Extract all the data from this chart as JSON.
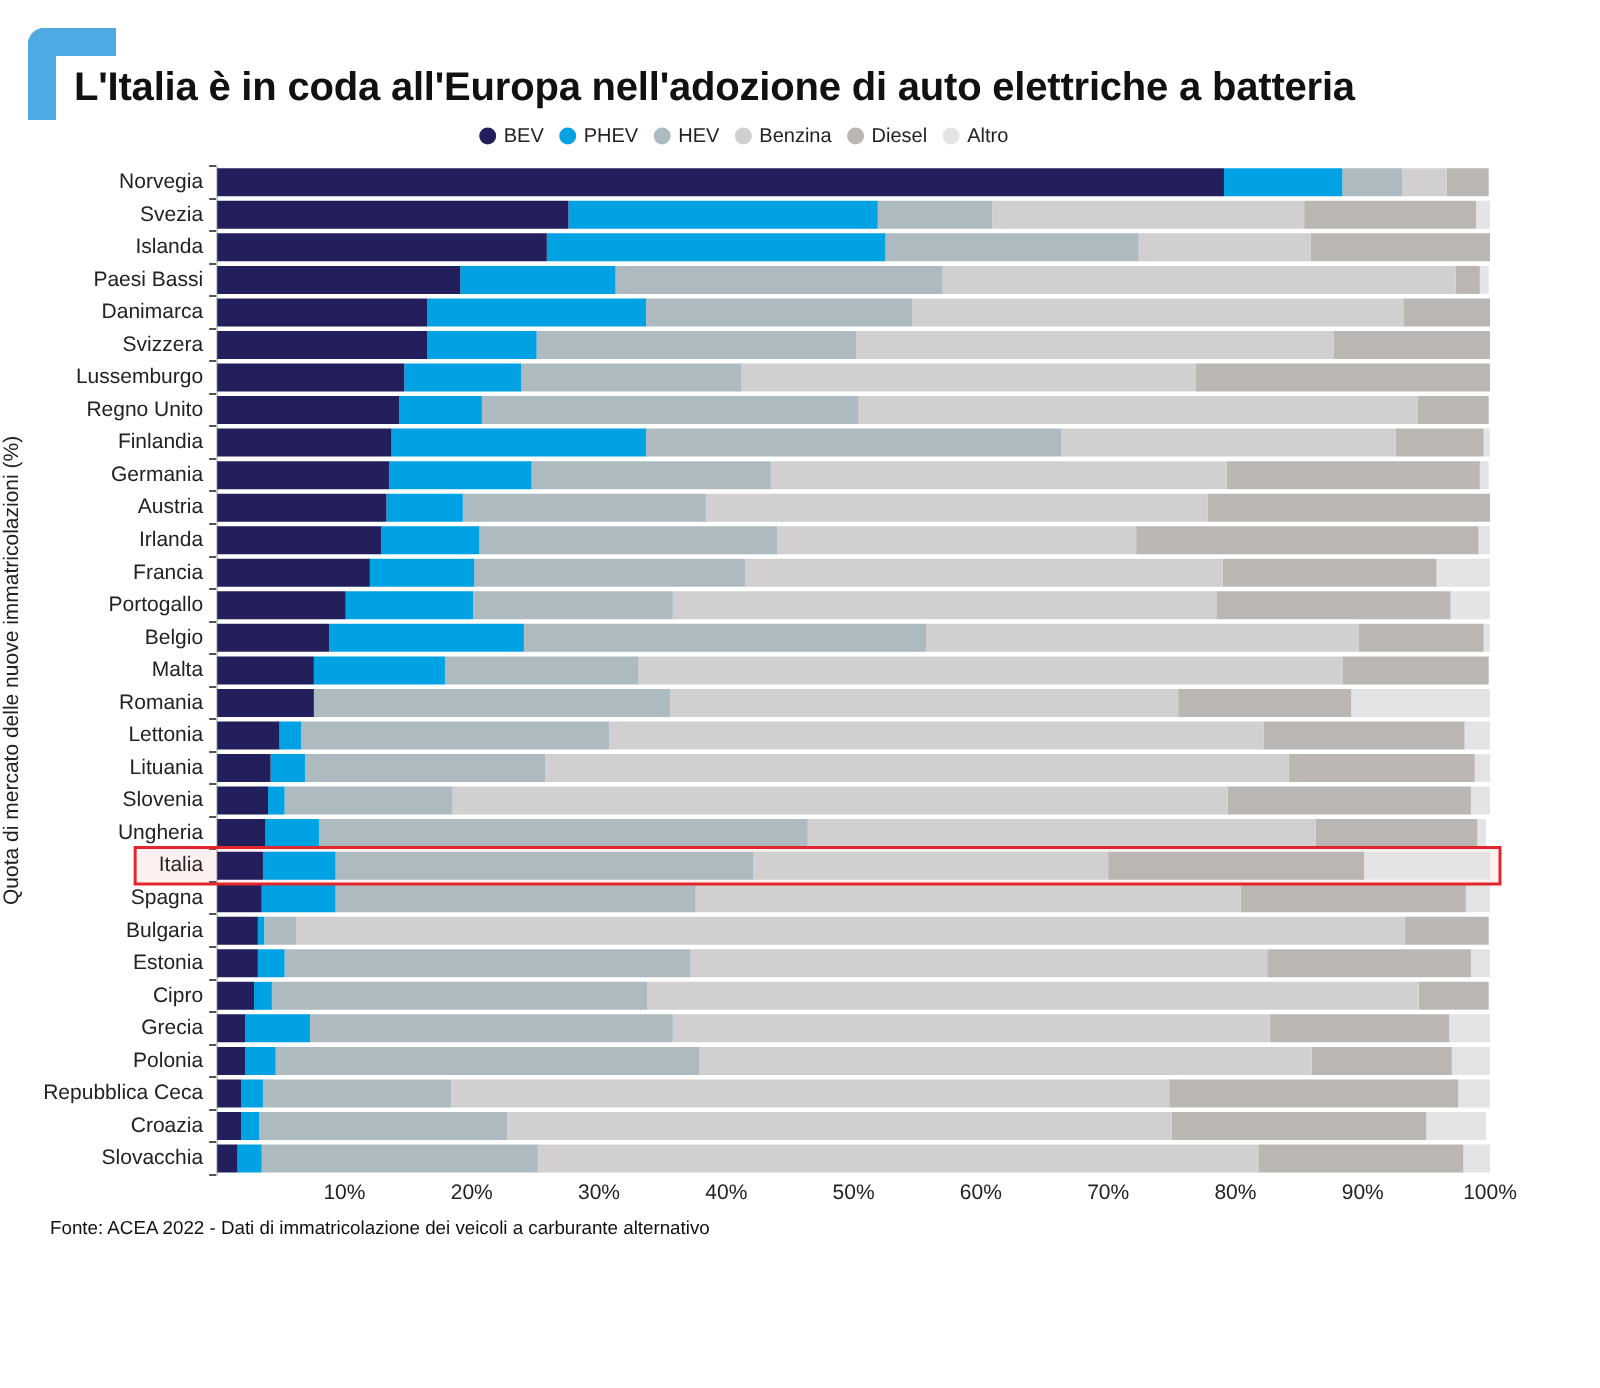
{
  "chart_data": {
    "type": "bar",
    "orientation": "horizontal",
    "stacked": true,
    "title": "L'Italia è in coda all'Europa nell'adozione di auto elettriche a batteria",
    "ylabel": "Quota di mercato delle nuove immatricolazioni (%)",
    "annotations": [
      "Fonte: ACEA 2022 - Dati di immatricolazione dei veicoli a carburante alternativo"
    ],
    "categories": [
      "Norvegia",
      "Svezia",
      "Islanda",
      "Paesi Bassi",
      "Danimarca",
      "Svizzera",
      "Lussemburgo",
      "Regno Unito",
      "Finlandia",
      "Germania",
      "Austria",
      "Irlanda",
      "Francia",
      "Portogallo",
      "Belgio",
      "Malta",
      "Romania",
      "Lettonia",
      "Lituania",
      "Slovenia",
      "Ungheria",
      "Italia",
      "Spagna",
      "Bulgaria",
      "Estonia",
      "Cipro",
      "Grecia",
      "Polonia",
      "Repubblica Ceca",
      "Croazia",
      "Slovacchia"
    ],
    "series": [
      {
        "name": "BEV",
        "color": "#231f5c",
        "values": [
          79.1,
          27.6,
          25.9,
          19.1,
          16.5,
          16.5,
          14.7,
          14.3,
          13.7,
          13.5,
          13.3,
          12.9,
          12.0,
          10.1,
          8.8,
          7.6,
          7.6,
          4.9,
          4.2,
          4.0,
          3.8,
          3.6,
          3.5,
          3.2,
          3.2,
          2.9,
          2.2,
          2.2,
          1.9,
          1.9,
          1.6
        ]
      },
      {
        "name": "PHEV",
        "color": "#00a2e3",
        "values": [
          9.3,
          24.3,
          26.6,
          12.2,
          17.2,
          8.6,
          9.2,
          6.5,
          20.0,
          11.2,
          6.0,
          7.7,
          8.2,
          10.0,
          15.3,
          10.3,
          0,
          1.7,
          2.7,
          1.3,
          4.2,
          5.7,
          5.8,
          0.5,
          2.1,
          1.4,
          5.1,
          2.4,
          1.7,
          1.4,
          1.9
        ]
      },
      {
        "name": "HEV",
        "color": "#adbbc1",
        "values": [
          4.7,
          9.0,
          19.9,
          25.7,
          20.9,
          25.1,
          17.3,
          29.6,
          32.6,
          18.8,
          19.1,
          23.4,
          21.3,
          15.7,
          31.6,
          15.2,
          28.0,
          24.2,
          18.9,
          13.2,
          38.4,
          32.8,
          28.3,
          2.5,
          31.9,
          29.5,
          28.5,
          33.3,
          14.8,
          19.5,
          21.7
        ]
      },
      {
        "name": "Benzina",
        "color": "#d1cfcf",
        "values": [
          3.5,
          24.5,
          13.5,
          40.3,
          38.6,
          37.5,
          35.7,
          43.9,
          26.3,
          35.8,
          39.4,
          28.2,
          37.5,
          42.7,
          34.0,
          55.3,
          39.9,
          51.4,
          58.4,
          60.9,
          39.9,
          27.9,
          42.8,
          87.1,
          45.3,
          60.6,
          46.9,
          48.1,
          56.4,
          52.2,
          56.6
        ]
      },
      {
        "name": "Diesel",
        "color": "#bab6b4",
        "values": [
          3.3,
          13.5,
          14.1,
          1.9,
          6.8,
          12.3,
          23.1,
          5.6,
          6.9,
          19.9,
          22.2,
          26.9,
          16.8,
          18.4,
          9.8,
          11.5,
          13.6,
          15.8,
          14.6,
          19.1,
          12.7,
          20.1,
          17.7,
          6.6,
          16.0,
          5.5,
          14.1,
          11.0,
          22.7,
          20.0,
          16.1
        ]
      },
      {
        "name": "Altro",
        "color": "#e4e4e4",
        "values": [
          0,
          1.1,
          0,
          0.7,
          0,
          0,
          0,
          0,
          0.5,
          0.7,
          0,
          0.9,
          4.2,
          3.1,
          0.5,
          0,
          10.9,
          2.0,
          1.2,
          1.5,
          0.7,
          9.9,
          1.9,
          0,
          1.5,
          0,
          3.2,
          3.0,
          2.5,
          4.7,
          2.1
        ]
      }
    ],
    "xlim": [
      0,
      100
    ],
    "xticks": [
      {
        "value": 10,
        "label": "10%"
      },
      {
        "value": 20,
        "label": "20%"
      },
      {
        "value": 30,
        "label": "30%"
      },
      {
        "value": 40,
        "label": "40%"
      },
      {
        "value": 50,
        "label": "50%"
      },
      {
        "value": 60,
        "label": "60%"
      },
      {
        "value": 70,
        "label": "70%"
      },
      {
        "value": 80,
        "label": "80%"
      },
      {
        "value": 90,
        "label": "90%"
      },
      {
        "value": 100,
        "label": "100%"
      }
    ],
    "bands": [
      {
        "axis": "y",
        "from": "Italia",
        "to": "Italia",
        "color": "#e3262b"
      }
    ],
    "grid": false,
    "legend": "top"
  }
}
